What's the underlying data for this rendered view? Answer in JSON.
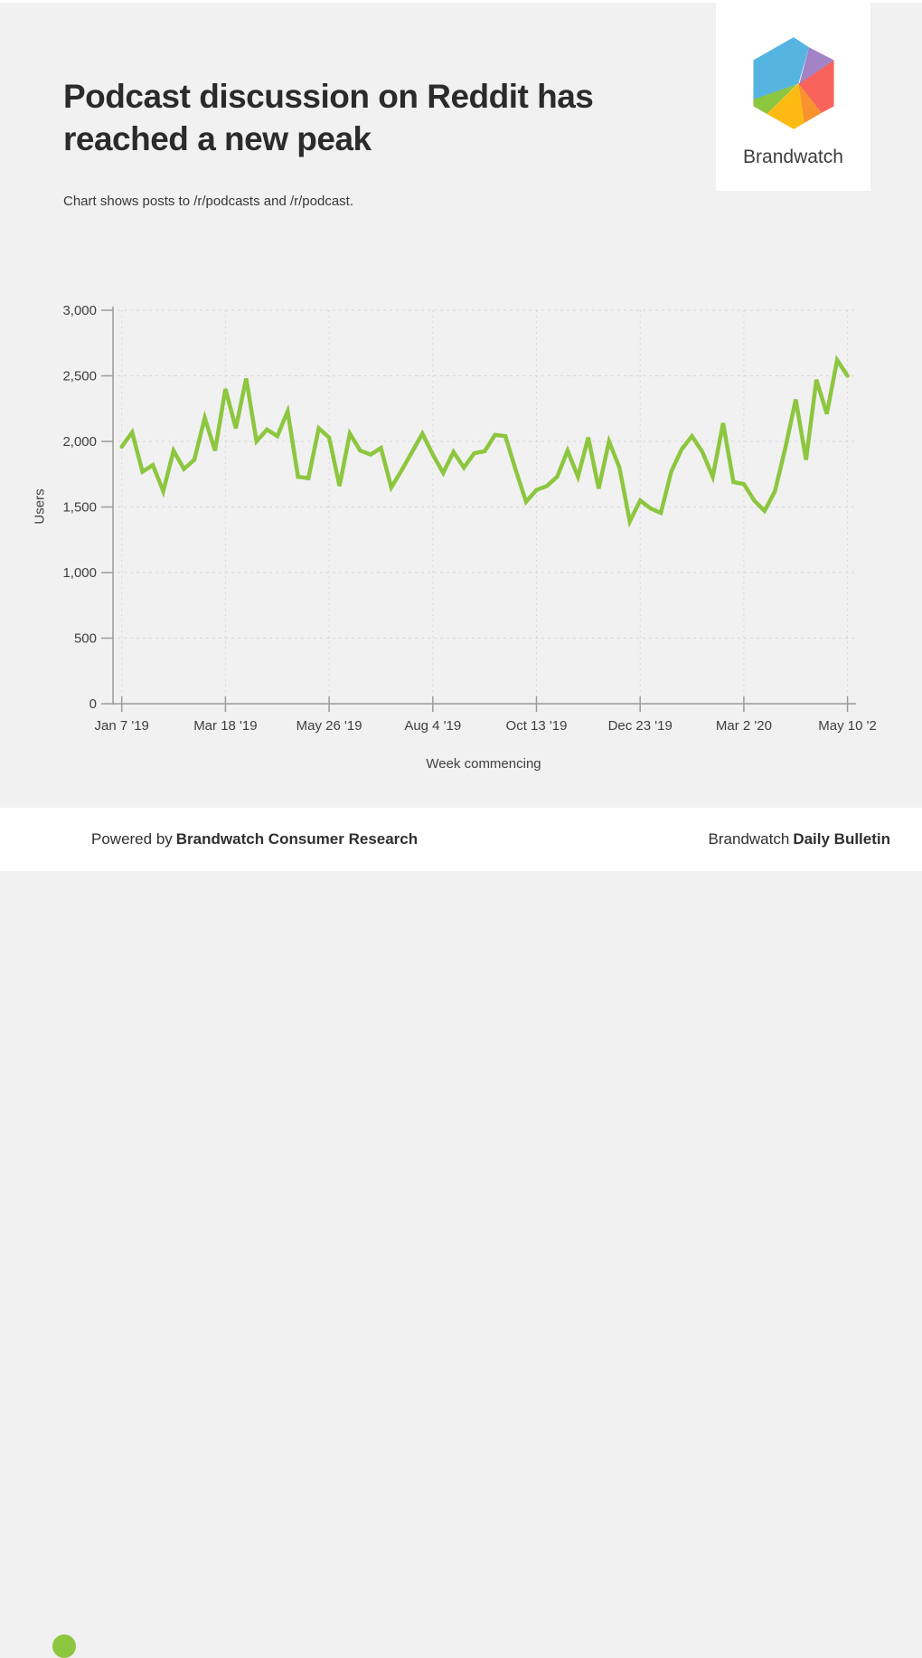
{
  "page": {
    "background": "#f1f1f1",
    "card_background": "#ffffff"
  },
  "header": {
    "title": "Podcast discussion on Reddit has reached a new peak",
    "subtitle": "Chart shows posts to /r/podcasts and /r/podcast."
  },
  "logo": {
    "brand": "Brandwatch",
    "colors": {
      "blue": "#55b5e0",
      "purple": "#a283c6",
      "coral": "#f8645c",
      "orange": "#f8922e",
      "yellow": "#fdba12",
      "green": "#8dc63f"
    }
  },
  "chart_data": {
    "type": "line",
    "title": "",
    "xlabel": "Week commencing",
    "ylabel": "Users",
    "ylim": [
      0,
      3000
    ],
    "y_ticks": [
      0,
      500,
      1000,
      1500,
      2000,
      2500,
      3000
    ],
    "y_tick_labels": [
      "0",
      "500",
      "1,000",
      "1,500",
      "2,000",
      "2,500",
      "3,000"
    ],
    "x_tick_weeks": [
      0,
      10,
      20,
      30,
      40,
      50,
      60,
      70
    ],
    "x_tick_labels": [
      "Jan 7 '19",
      "Mar 18 '19",
      "May 26 '19",
      "Aug 4 '19",
      "Oct 13 '19",
      "Dec 23 '19",
      "Mar 2 '20",
      "May 10 '2"
    ],
    "grid": true,
    "legend": "none",
    "line_color": "#8dc63f",
    "grid_color": "#d7d7d7",
    "axis_color": "#9b9b9b",
    "series_name": "Users per week",
    "x_unit": "week index from Jan 7 2019, weekly points",
    "values": [
      1960,
      2070,
      1770,
      1820,
      1620,
      1930,
      1790,
      1860,
      2180,
      1930,
      2400,
      2100,
      2480,
      2000,
      2090,
      2040,
      2230,
      1730,
      1720,
      2100,
      2030,
      1660,
      2060,
      1930,
      1900,
      1950,
      1650,
      1780,
      1920,
      2060,
      1900,
      1760,
      1920,
      1800,
      1910,
      1925,
      2050,
      2040,
      1780,
      1540,
      1630,
      1660,
      1730,
      1930,
      1730,
      2030,
      1640,
      2000,
      1800,
      1390,
      1550,
      1490,
      1455,
      1770,
      1940,
      2040,
      1920,
      1730,
      2140,
      1690,
      1675,
      1550,
      1470,
      1620,
      1950,
      2320,
      1860,
      2470,
      2210,
      2620,
      2500
    ]
  },
  "footer": {
    "powered_prefix": "Powered by",
    "powered_brand": "Brandwatch Consumer Research",
    "brand": "Brandwatch",
    "bulletin": "Daily Bulletin",
    "dot_color": "#8dc63f"
  }
}
